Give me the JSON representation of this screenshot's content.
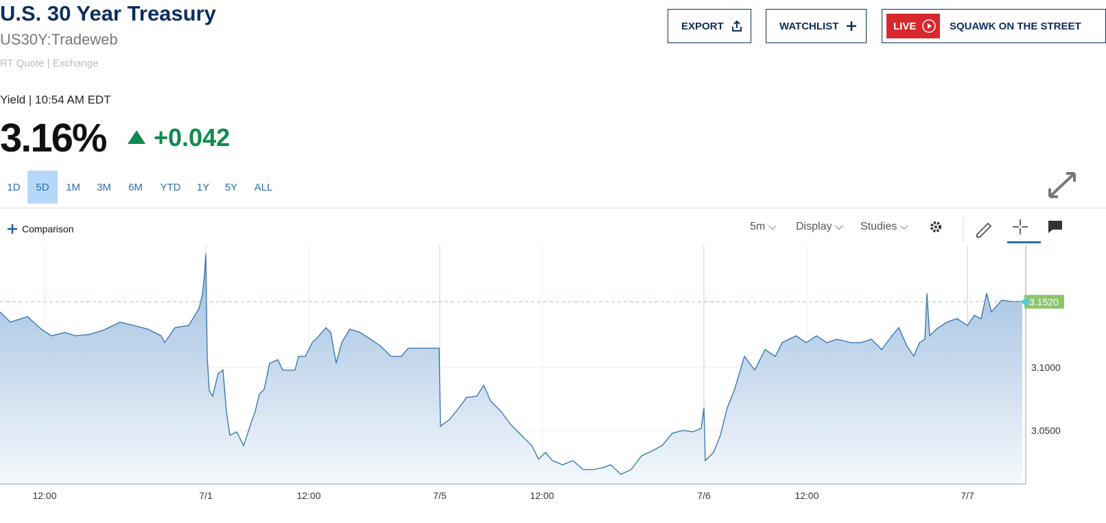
{
  "header": {
    "title": "U.S. 30 Year Treasury",
    "symbol": "US30Y:Tradeweb",
    "quote_source": "RT Quote | Exchange",
    "yield_label": "Yield | 10:54 AM EDT",
    "price": "3.16%",
    "change": "+0.042"
  },
  "buttons": {
    "export": "EXPORT",
    "watchlist": "WATCHLIST",
    "live": "LIVE",
    "show": "SQUAWK ON THE STREET"
  },
  "ranges": {
    "items": [
      "1D",
      "5D",
      "1M",
      "3M",
      "6M",
      "YTD",
      "1Y",
      "5Y",
      "ALL"
    ],
    "active": 1
  },
  "toolbar": {
    "comparison": "Comparison",
    "interval": "5m",
    "display": "Display",
    "studies": "Studies"
  },
  "chart_data": {
    "type": "area",
    "color": "#2f6fad",
    "x": [
      0,
      3,
      8,
      12,
      15,
      19,
      22,
      26,
      30,
      35,
      39,
      43,
      47,
      48,
      51,
      55,
      58,
      59,
      59.6,
      60,
      60.4,
      61,
      62,
      63.6,
      65,
      66,
      67,
      69,
      71,
      73,
      74.4,
      75.6,
      77,
      78.6,
      81,
      82.4,
      86,
      87,
      89,
      91,
      93,
      95,
      96.4,
      98,
      99.6,
      102,
      105,
      108,
      111,
      114,
      117,
      119,
      128,
      128.4,
      131,
      133,
      136,
      139,
      141,
      143,
      146,
      149,
      152,
      155,
      157,
      159,
      161,
      164,
      167,
      170,
      173,
      176,
      178,
      181,
      184,
      187,
      190,
      193,
      196,
      199,
      202,
      204.4,
      205.2,
      205.6,
      208,
      210,
      212,
      214,
      217,
      220,
      223,
      226,
      228,
      232,
      235,
      238,
      241,
      244,
      248,
      251,
      254,
      257,
      260,
      262,
      264.4,
      266.4,
      268,
      269.6,
      270.2,
      271,
      273,
      276,
      279,
      282,
      284,
      286,
      287.6,
      289,
      292,
      295,
      298
    ],
    "values": [
      3.144,
      3.1359,
      3.1402,
      3.1304,
      3.125,
      3.1277,
      3.125,
      3.1261,
      3.1293,
      3.1359,
      3.1332,
      3.1304,
      3.125,
      3.1196,
      3.1315,
      3.1332,
      3.1467,
      3.1576,
      3.1739,
      3.1902,
      3.1087,
      3.0815,
      3.0772,
      3.0951,
      3.0978,
      3.0652,
      3.0462,
      3.0489,
      3.038,
      3.0543,
      3.0652,
      3.0788,
      3.0826,
      3.1033,
      3.106,
      3.0978,
      3.0978,
      3.1087,
      3.1087,
      3.1196,
      3.125,
      3.1315,
      3.1277,
      3.1033,
      3.1196,
      3.1304,
      3.1277,
      3.1223,
      3.1168,
      3.1087,
      3.1087,
      3.1152,
      3.1152,
      3.0533,
      3.0587,
      3.0652,
      3.0761,
      3.0772,
      3.0859,
      3.0734,
      3.0652,
      3.0543,
      3.0462,
      3.038,
      3.0272,
      3.0326,
      3.0261,
      3.0228,
      3.0261,
      3.019,
      3.019,
      3.0207,
      3.0228,
      3.0152,
      3.019,
      3.0299,
      3.0337,
      3.038,
      3.0478,
      3.05,
      3.0489,
      3.0516,
      3.0679,
      3.0261,
      3.0326,
      3.0462,
      3.0679,
      3.0815,
      3.1087,
      3.0978,
      3.1141,
      3.1087,
      3.1196,
      3.125,
      3.1196,
      3.125,
      3.1196,
      3.1223,
      3.1196,
      3.1196,
      3.1223,
      3.1141,
      3.125,
      3.1315,
      3.1168,
      3.1087,
      3.1196,
      3.1223,
      3.1587,
      3.125,
      3.1304,
      3.1359,
      3.1386,
      3.1332,
      3.1413,
      3.1386,
      3.1587,
      3.144,
      3.1533,
      3.1522,
      3.1522
    ],
    "xlim": [
      0,
      299
    ],
    "ylim": [
      3.0076,
      3.1967
    ],
    "xticks": [
      {
        "value": 13,
        "label": "12:00"
      },
      {
        "value": 60,
        "label": "7/1"
      },
      {
        "value": 90,
        "label": "12:00"
      },
      {
        "value": 128.2,
        "label": "7/5"
      },
      {
        "value": 158,
        "label": "12:00"
      },
      {
        "value": 205.2,
        "label": "7/6"
      },
      {
        "value": 235.2,
        "label": "12:00"
      },
      {
        "value": 282,
        "label": "7/7"
      }
    ],
    "yticks": [
      {
        "value": 3.05,
        "label": "3.0500"
      },
      {
        "value": 3.1,
        "label": "3.1000"
      }
    ],
    "grid": true,
    "last_value": {
      "value": 3.152,
      "label": "3.1520"
    }
  }
}
